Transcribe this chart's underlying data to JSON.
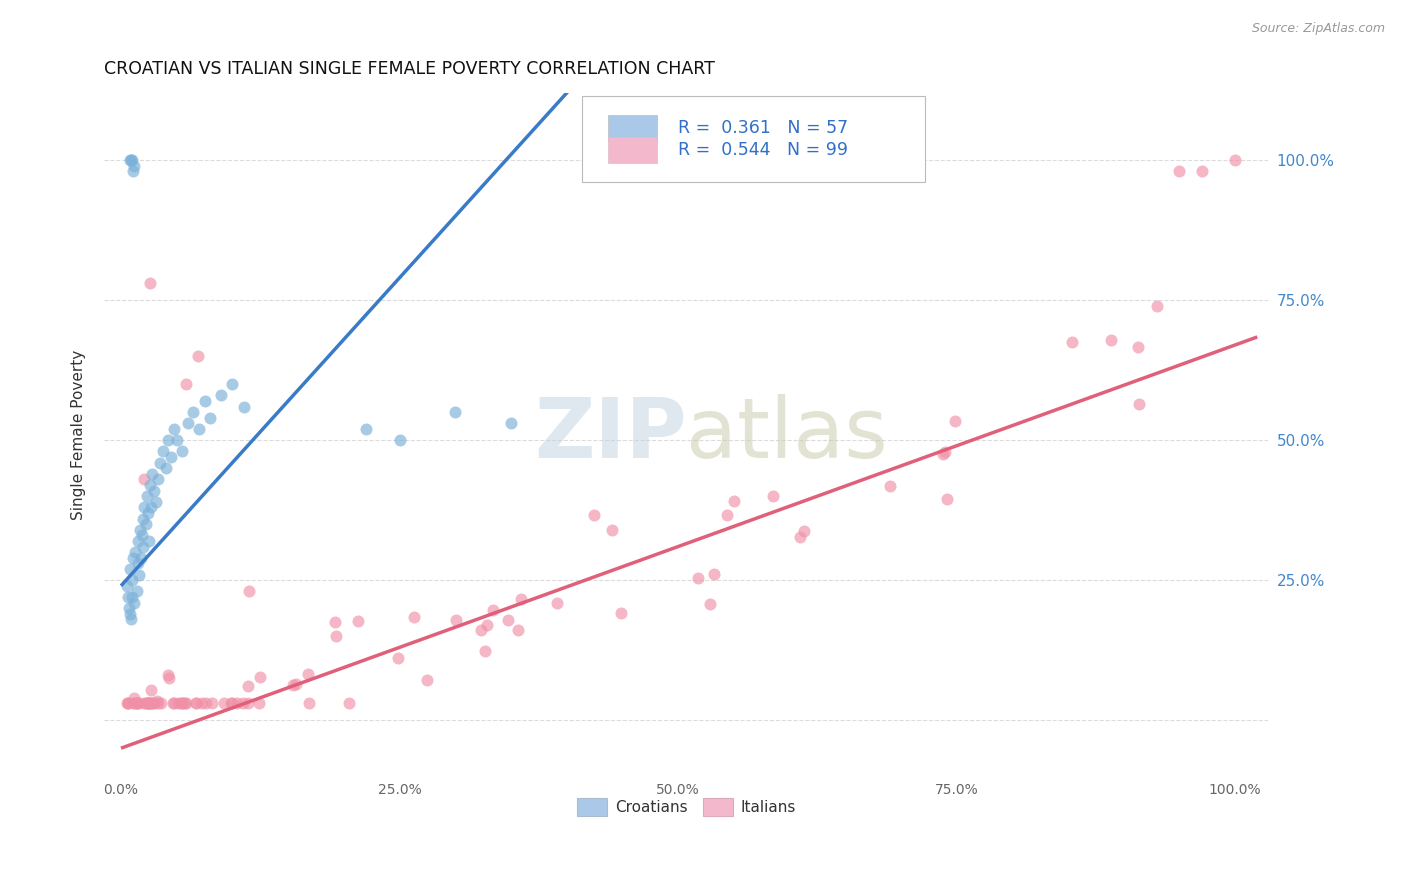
{
  "title": "CROATIAN VS ITALIAN SINGLE FEMALE POVERTY CORRELATION CHART",
  "source": "Source: ZipAtlas.com",
  "ylabel": "Single Female Poverty",
  "watermark_zip": "ZIP",
  "watermark_atlas": "atlas",
  "background_color": "#ffffff",
  "grid_color": "#cccccc",
  "title_fontsize": 12.5,
  "croatian_color": "#7ab0d8",
  "croatian_line_color": "#3a7bc8",
  "italian_color": "#f090a8",
  "italian_line_color": "#e0607a",
  "legend_patch_cro": "#aac8e8",
  "legend_patch_ita": "#f4b8cc",
  "cro_R": "0.361",
  "cro_N": "57",
  "ita_R": "0.544",
  "ita_N": "99",
  "cro_slope": 2.2,
  "cro_intercept": 0.24,
  "ita_slope": 0.72,
  "ita_intercept": -0.05,
  "ytick_labels": [
    "",
    "25.0%",
    "50.0%",
    "75.0%",
    "100.0%"
  ],
  "ytick_values": [
    0.0,
    0.25,
    0.5,
    0.75,
    1.0
  ],
  "xtick_labels": [
    "0.0%",
    "25.0%",
    "50.0%",
    "75.0%",
    "100.0%"
  ],
  "xtick_values": [
    0.0,
    0.25,
    0.5,
    0.75,
    1.0
  ],
  "xlim": [
    -0.015,
    1.03
  ],
  "ylim": [
    -0.1,
    1.12
  ]
}
